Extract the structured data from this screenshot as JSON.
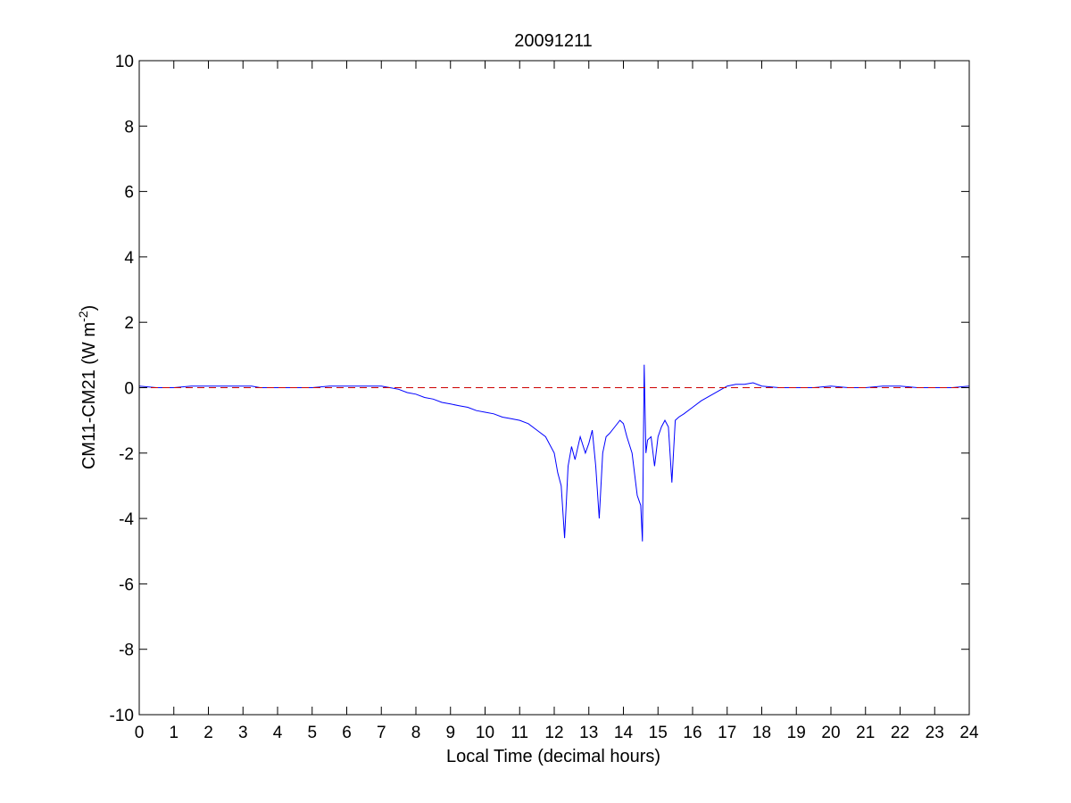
{
  "chart_data": {
    "type": "line",
    "title": "20091211",
    "xlabel": "Local Time (decimal hours)",
    "ylabel": {
      "prefix": "CM11-CM21 (W m",
      "superscript": "-2",
      "suffix": ")"
    },
    "xlim": [
      0,
      24
    ],
    "ylim": [
      -10,
      10
    ],
    "xticks": [
      0,
      1,
      2,
      3,
      4,
      5,
      6,
      7,
      8,
      9,
      10,
      11,
      12,
      13,
      14,
      15,
      16,
      17,
      18,
      19,
      20,
      21,
      22,
      23,
      24
    ],
    "yticks": [
      -10,
      -8,
      -6,
      -4,
      -2,
      0,
      2,
      4,
      6,
      8,
      10
    ],
    "grid": false,
    "series": [
      {
        "color": "#0000ff",
        "style": "solid",
        "x": [
          0,
          0.5,
          1,
          1.5,
          2,
          2.5,
          3,
          3.25,
          3.5,
          4,
          4.5,
          5,
          5.5,
          6,
          6.5,
          7,
          7.25,
          7.5,
          7.75,
          8,
          8.25,
          8.5,
          8.75,
          9,
          9.25,
          9.5,
          9.75,
          10,
          10.25,
          10.5,
          10.75,
          11,
          11.25,
          11.5,
          11.75,
          12,
          12.1,
          12.2,
          12.3,
          12.4,
          12.5,
          12.6,
          12.75,
          12.9,
          13,
          13.1,
          13.2,
          13.3,
          13.4,
          13.5,
          13.6,
          13.75,
          13.9,
          14,
          14.1,
          14.25,
          14.4,
          14.5,
          14.55,
          14.6,
          14.65,
          14.7,
          14.8,
          14.9,
          15,
          15.1,
          15.2,
          15.3,
          15.4,
          15.5,
          15.6,
          15.75,
          16,
          16.25,
          16.5,
          16.75,
          17,
          17.25,
          17.5,
          17.75,
          18,
          18.5,
          19,
          19.5,
          20,
          20.5,
          21,
          21.5,
          22,
          22.5,
          23,
          23.5,
          24
        ],
        "values": [
          0.05,
          0.0,
          0.0,
          0.05,
          0.05,
          0.05,
          0.05,
          0.05,
          0.0,
          0.0,
          0.0,
          0.0,
          0.05,
          0.05,
          0.05,
          0.05,
          0.0,
          -0.05,
          -0.15,
          -0.2,
          -0.3,
          -0.35,
          -0.45,
          -0.5,
          -0.55,
          -0.6,
          -0.7,
          -0.75,
          -0.8,
          -0.9,
          -0.95,
          -1.0,
          -1.1,
          -1.3,
          -1.5,
          -2.0,
          -2.6,
          -3.0,
          -4.6,
          -2.4,
          -1.8,
          -2.2,
          -1.5,
          -2.0,
          -1.7,
          -1.3,
          -2.4,
          -4.0,
          -2.0,
          -1.5,
          -1.4,
          -1.2,
          -1.0,
          -1.1,
          -1.5,
          -2.0,
          -3.3,
          -3.6,
          -4.7,
          0.7,
          -2.0,
          -1.6,
          -1.5,
          -2.4,
          -1.5,
          -1.2,
          -1.0,
          -1.2,
          -2.9,
          -1.0,
          -0.9,
          -0.8,
          -0.6,
          -0.4,
          -0.25,
          -0.1,
          0.05,
          0.1,
          0.1,
          0.15,
          0.05,
          0.0,
          0.0,
          0.0,
          0.05,
          0.0,
          0.0,
          0.05,
          0.05,
          0.0,
          0.0,
          0.0,
          0.05
        ]
      },
      {
        "color": "#cc0000",
        "style": "dashed",
        "x": [
          0,
          24
        ],
        "values": [
          0,
          0
        ]
      }
    ]
  }
}
